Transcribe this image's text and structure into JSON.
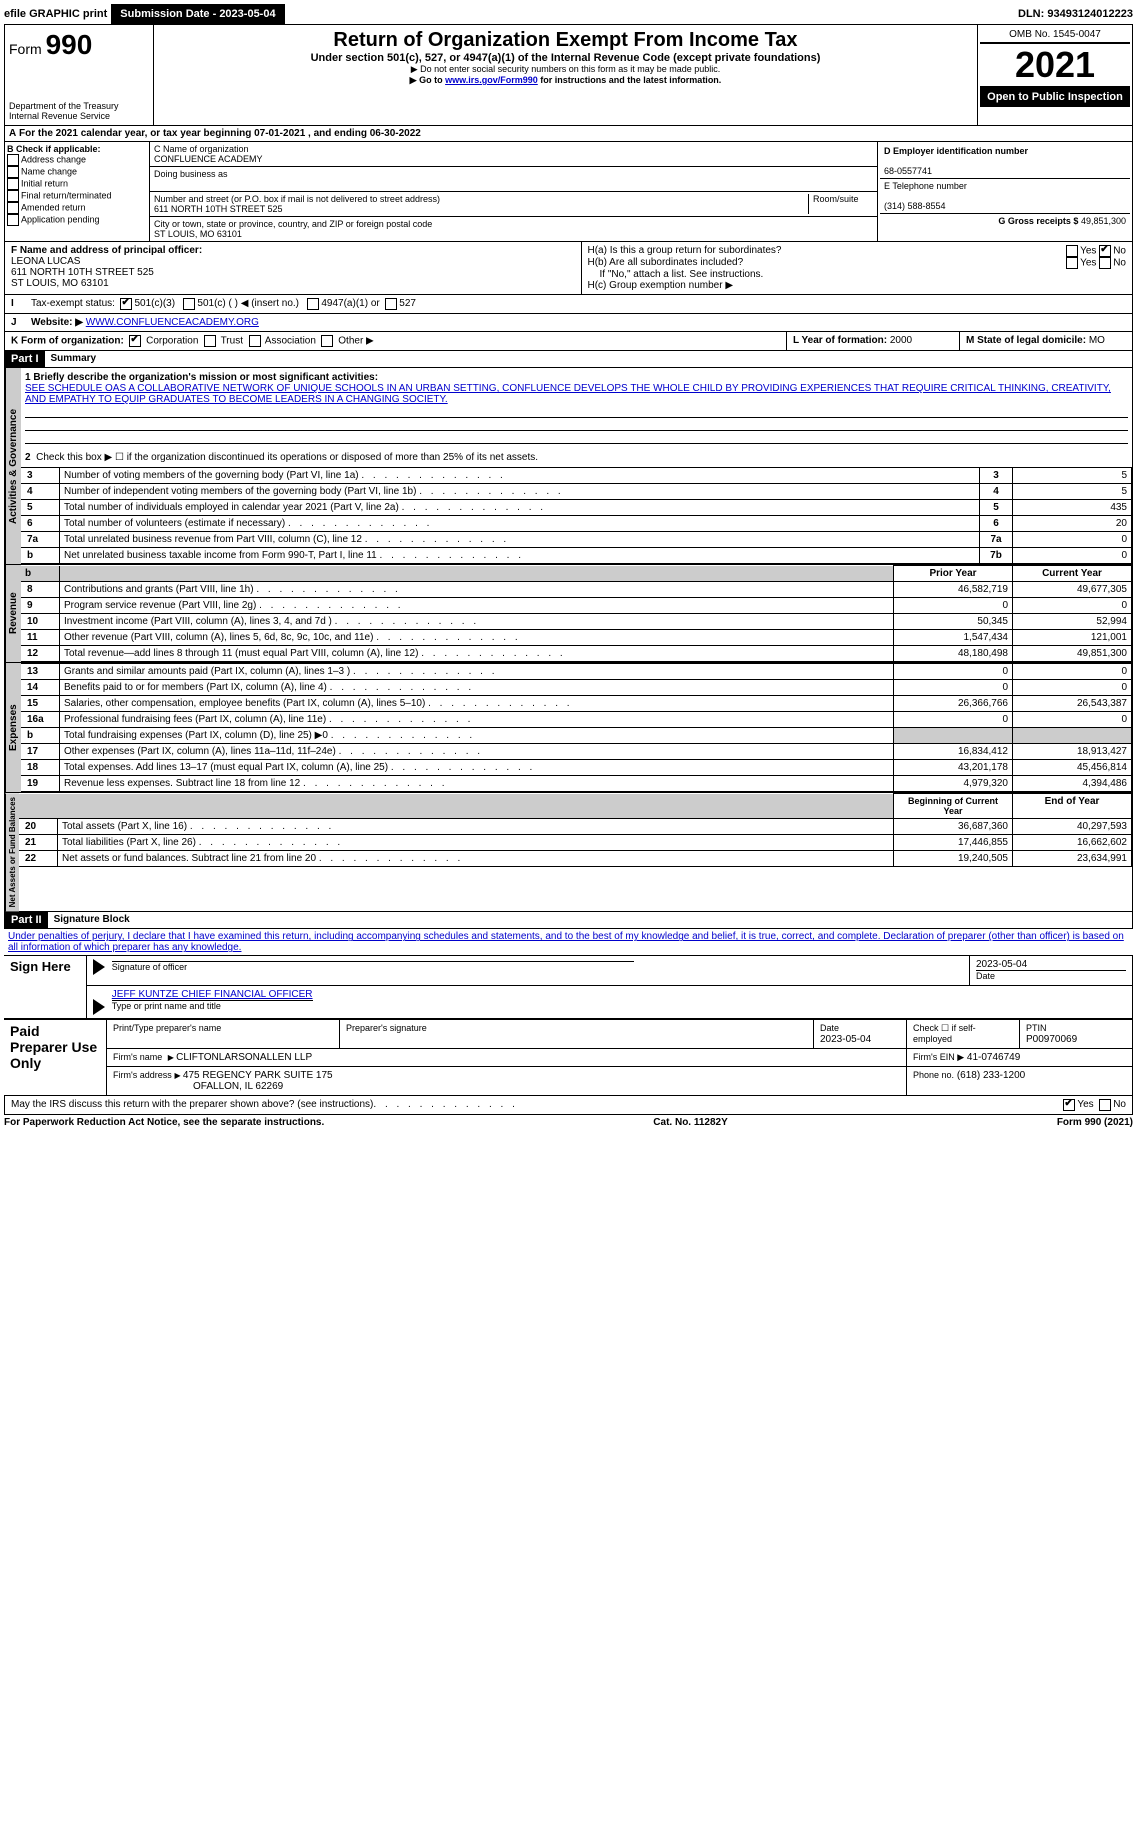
{
  "top": {
    "efile": "efile GRAPHIC print",
    "submission": "Submission Date - 2023-05-04",
    "dln": "DLN: 93493124012223"
  },
  "header": {
    "form_prefix": "Form",
    "form_num": "990",
    "title": "Return of Organization Exempt From Income Tax",
    "subtitle": "Under section 501(c), 527, or 4947(a)(1) of the Internal Revenue Code (except private foundations)",
    "note1": "▶ Do not enter social security numbers on this form as it may be made public.",
    "note2_pre": "▶ Go to ",
    "note2_link": "www.irs.gov/Form990",
    "note2_post": " for instructions and the latest information.",
    "dept": "Department of the Treasury",
    "irs": "Internal Revenue Service",
    "omb": "OMB No. 1545-0047",
    "year": "2021",
    "open": "Open to Public Inspection"
  },
  "A": {
    "text": "For the 2021 calendar year, or tax year beginning 07-01-2021    , and ending 06-30-2022"
  },
  "B": {
    "hdr": "B Check if applicable:",
    "i1": "Address change",
    "i2": "Name change",
    "i3": "Initial return",
    "i4": "Final return/terminated",
    "i5": "Amended return",
    "i6": "Application pending"
  },
  "C": {
    "name_lbl": "C Name of organization",
    "name": "CONFLUENCE ACADEMY",
    "dba_lbl": "Doing business as",
    "addr_lbl": "Number and street (or P.O. box if mail is not delivered to street address)",
    "room_lbl": "Room/suite",
    "addr": "611 NORTH 10TH STREET 525",
    "city_lbl": "City or town, state or province, country, and ZIP or foreign postal code",
    "city": "ST LOUIS, MO  63101"
  },
  "D": {
    "lbl": "D Employer identification number",
    "val": "68-0557741"
  },
  "E": {
    "lbl": "E Telephone number",
    "val": "(314) 588-8554"
  },
  "G": {
    "lbl": "G Gross receipts $",
    "val": "49,851,300"
  },
  "F": {
    "lbl": "F  Name and address of principal officer:",
    "name": "LEONA LUCAS",
    "addr1": "611 NORTH 10TH STREET 525",
    "addr2": "ST LOUIS, MO  63101"
  },
  "H": {
    "a": "H(a)  Is this a group return for subordinates?",
    "b": "H(b)  Are all subordinates included?",
    "b_note": "If \"No,\" attach a list. See instructions.",
    "c": "H(c)  Group exemption number ▶",
    "yes": "Yes",
    "no": "No"
  },
  "I": {
    "lbl": "Tax-exempt status:",
    "o1": "501(c)(3)",
    "o2": "501(c) (   ) ◀ (insert no.)",
    "o3": "4947(a)(1) or",
    "o4": "527"
  },
  "J": {
    "lbl": "Website: ▶",
    "val": "WWW.CONFLUENCEACADEMY.ORG"
  },
  "K": {
    "lbl": "K Form of organization:",
    "o1": "Corporation",
    "o2": "Trust",
    "o3": "Association",
    "o4": "Other ▶"
  },
  "L": {
    "lbl": "L Year of formation:",
    "val": "2000"
  },
  "M": {
    "lbl": "M State of legal domicile:",
    "val": "MO"
  },
  "part1": {
    "hdr": "Part I",
    "title": "Summary",
    "vlabel": "Activities & Governance",
    "l1_lbl": "1 Briefly describe the organization's mission or most significant activities:",
    "l1_txt": "SEE SCHEDULE OAS A COLLABORATIVE NETWORK OF UNIQUE SCHOOLS IN AN URBAN SETTING, CONFLUENCE DEVELOPS THE WHOLE CHILD BY PROVIDING EXPERIENCES THAT REQUIRE CRITICAL THINKING, CREATIVITY, AND EMPATHY TO EQUIP GRADUATES TO BECOME LEADERS IN A CHANGING SOCIETY.",
    "l2": "Check this box ▶ ☐  if the organization discontinued its operations or disposed of more than 25% of its net assets.",
    "rows": [
      {
        "n": "3",
        "t": "Number of voting members of the governing body (Part VI, line 1a)",
        "ln": "3",
        "v": "5"
      },
      {
        "n": "4",
        "t": "Number of independent voting members of the governing body (Part VI, line 1b)",
        "ln": "4",
        "v": "5"
      },
      {
        "n": "5",
        "t": "Total number of individuals employed in calendar year 2021 (Part V, line 2a)",
        "ln": "5",
        "v": "435"
      },
      {
        "n": "6",
        "t": "Total number of volunteers (estimate if necessary)",
        "ln": "6",
        "v": "20"
      },
      {
        "n": "7a",
        "t": "Total unrelated business revenue from Part VIII, column (C), line 12",
        "ln": "7a",
        "v": "0"
      },
      {
        "n": "b",
        "t": "Net unrelated business taxable income from Form 990-T, Part I, line 11",
        "ln": "7b",
        "v": "0"
      }
    ]
  },
  "revenue": {
    "vlabel": "Revenue",
    "hdr_prior": "Prior Year",
    "hdr_curr": "Current Year",
    "rows": [
      {
        "n": "8",
        "t": "Contributions and grants (Part VIII, line 1h)",
        "p": "46,582,719",
        "c": "49,677,305"
      },
      {
        "n": "9",
        "t": "Program service revenue (Part VIII, line 2g)",
        "p": "0",
        "c": "0"
      },
      {
        "n": "10",
        "t": "Investment income (Part VIII, column (A), lines 3, 4, and 7d )",
        "p": "50,345",
        "c": "52,994"
      },
      {
        "n": "11",
        "t": "Other revenue (Part VIII, column (A), lines 5, 6d, 8c, 9c, 10c, and 11e)",
        "p": "1,547,434",
        "c": "121,001"
      },
      {
        "n": "12",
        "t": "Total revenue—add lines 8 through 11 (must equal Part VIII, column (A), line 12)",
        "p": "48,180,498",
        "c": "49,851,300"
      }
    ]
  },
  "expenses": {
    "vlabel": "Expenses",
    "rows": [
      {
        "n": "13",
        "t": "Grants and similar amounts paid (Part IX, column (A), lines 1–3 )",
        "p": "0",
        "c": "0"
      },
      {
        "n": "14",
        "t": "Benefits paid to or for members (Part IX, column (A), line 4)",
        "p": "0",
        "c": "0"
      },
      {
        "n": "15",
        "t": "Salaries, other compensation, employee benefits (Part IX, column (A), lines 5–10)",
        "p": "26,366,766",
        "c": "26,543,387"
      },
      {
        "n": "16a",
        "t": "Professional fundraising fees (Part IX, column (A), line 11e)",
        "p": "0",
        "c": "0"
      },
      {
        "n": "b",
        "t": "Total fundraising expenses (Part IX, column (D), line 25) ▶0",
        "p": "",
        "c": "",
        "grey": true
      },
      {
        "n": "17",
        "t": "Other expenses (Part IX, column (A), lines 11a–11d, 11f–24e)",
        "p": "16,834,412",
        "c": "18,913,427"
      },
      {
        "n": "18",
        "t": "Total expenses. Add lines 13–17 (must equal Part IX, column (A), line 25)",
        "p": "43,201,178",
        "c": "45,456,814"
      },
      {
        "n": "19",
        "t": "Revenue less expenses. Subtract line 18 from line 12",
        "p": "4,979,320",
        "c": "4,394,486"
      }
    ]
  },
  "netassets": {
    "vlabel": "Net Assets or Fund Balances",
    "hdr_begin": "Beginning of Current Year",
    "hdr_end": "End of Year",
    "rows": [
      {
        "n": "20",
        "t": "Total assets (Part X, line 16)",
        "p": "36,687,360",
        "c": "40,297,593"
      },
      {
        "n": "21",
        "t": "Total liabilities (Part X, line 26)",
        "p": "17,446,855",
        "c": "16,662,602"
      },
      {
        "n": "22",
        "t": "Net assets or fund balances. Subtract line 21 from line 20",
        "p": "19,240,505",
        "c": "23,634,991"
      }
    ]
  },
  "part2": {
    "hdr": "Part II",
    "title": "Signature Block",
    "decl": "Under penalties of perjury, I declare that I have examined this return, including accompanying schedules and statements, and to the best of my knowledge and belief, it is true, correct, and complete. Declaration of preparer (other than officer) is based on all information of which preparer has any knowledge."
  },
  "sign": {
    "lbl": "Sign Here",
    "sig_lbl": "Signature of officer",
    "date_lbl": "Date",
    "date": "2023-05-04",
    "name": "JEFF KUNTZE CHIEF FINANCIAL OFFICER",
    "name_lbl": "Type or print name and title"
  },
  "paid": {
    "lbl": "Paid Preparer Use Only",
    "h1": "Print/Type preparer's name",
    "h2": "Preparer's signature",
    "h3": "Date",
    "h4": "Check ☐ if self-employed",
    "h5": "PTIN",
    "date": "2023-05-04",
    "ptin": "P00970069",
    "firm_lbl": "Firm's name",
    "firm": "CLIFTONLARSONALLEN LLP",
    "ein_lbl": "Firm's EIN ▶",
    "ein": "41-0746749",
    "addr_lbl": "Firm's address",
    "addr1": "475 REGENCY PARK SUITE 175",
    "addr2": "OFALLON, IL  62269",
    "phone_lbl": "Phone no.",
    "phone": "(618) 233-1200"
  },
  "discuss": {
    "q": "May the IRS discuss this return with the preparer shown above? (see instructions)",
    "yes": "Yes",
    "no": "No"
  },
  "footer": {
    "l": "For Paperwork Reduction Act Notice, see the separate instructions.",
    "m": "Cat. No. 11282Y",
    "r": "Form 990 (2021)"
  }
}
